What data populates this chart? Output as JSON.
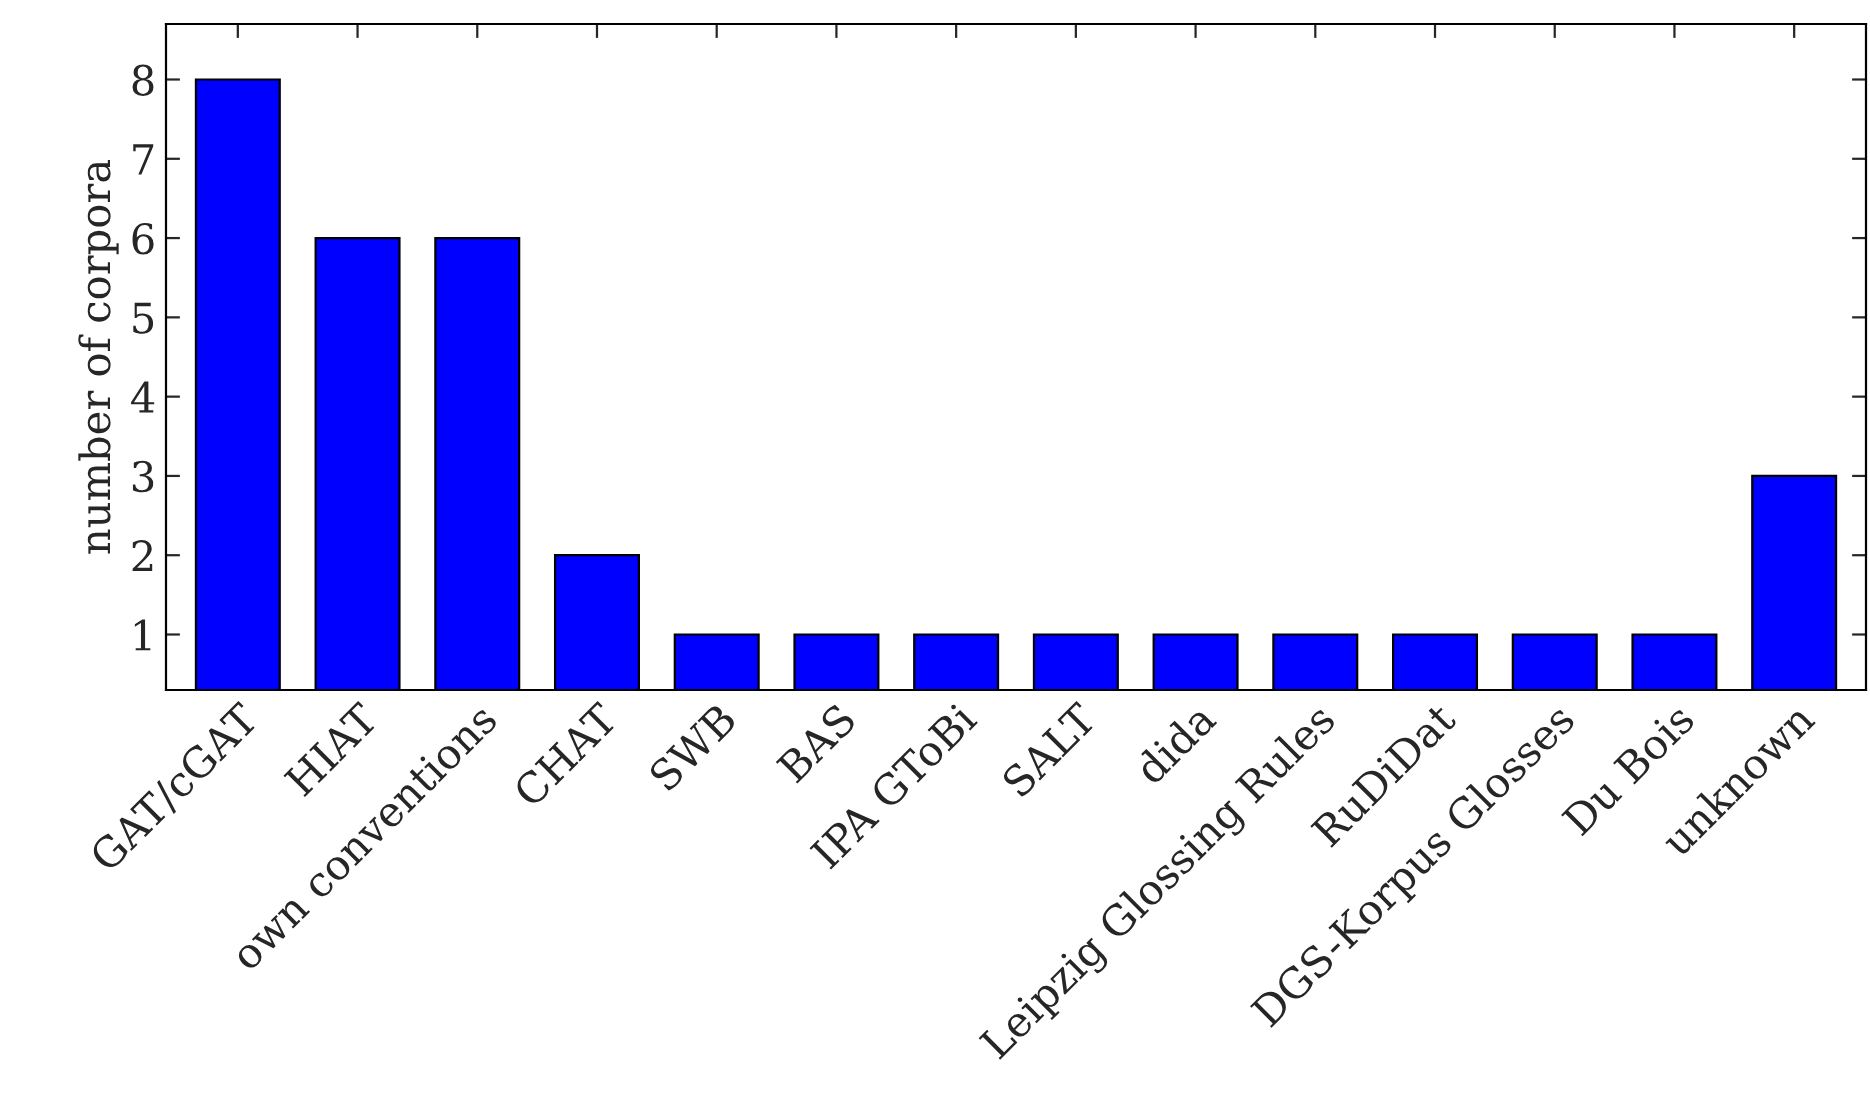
{
  "chart_data": {
    "type": "bar",
    "ylabel": "number of corpora",
    "categories": [
      "GAT/cGAT",
      "HIAT",
      "own conventions",
      "CHAT",
      "SWB",
      "BAS",
      "IPA GToBi",
      "SALT",
      "dida",
      "Leipzig Glossing Rules",
      "RuDiDat",
      "DGS-Korpus Glosses",
      "Du Bois",
      "unknown"
    ],
    "values": [
      8,
      6,
      6,
      2,
      1,
      1,
      1,
      1,
      1,
      1,
      1,
      1,
      1,
      3
    ],
    "color": "#0000ff",
    "ylim": [
      0.3,
      8.7
    ],
    "yticks": [
      1,
      2,
      3,
      4,
      5,
      6,
      7,
      8
    ],
    "grid": false,
    "legend": false
  }
}
